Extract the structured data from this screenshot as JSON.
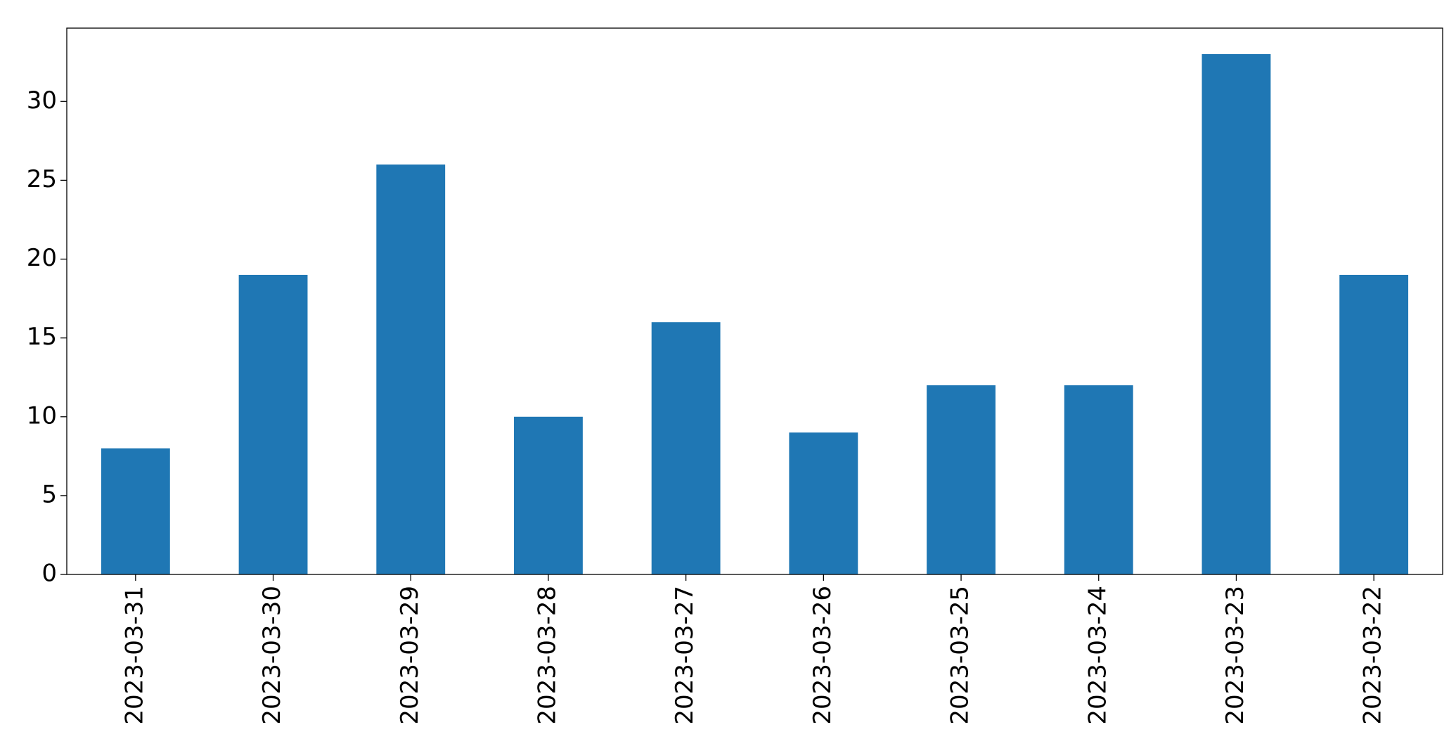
{
  "chart_data": {
    "type": "bar",
    "categories": [
      "2023-03-31",
      "2023-03-30",
      "2023-03-29",
      "2023-03-28",
      "2023-03-27",
      "2023-03-26",
      "2023-03-25",
      "2023-03-24",
      "2023-03-23",
      "2023-03-22"
    ],
    "values": [
      8,
      19,
      26,
      10,
      16,
      9,
      12,
      12,
      33,
      19
    ],
    "color": "#1f77b4",
    "ylim": [
      0,
      34.65
    ],
    "yticks": [
      0,
      5,
      10,
      15,
      20,
      25,
      30
    ],
    "grid": false
  }
}
